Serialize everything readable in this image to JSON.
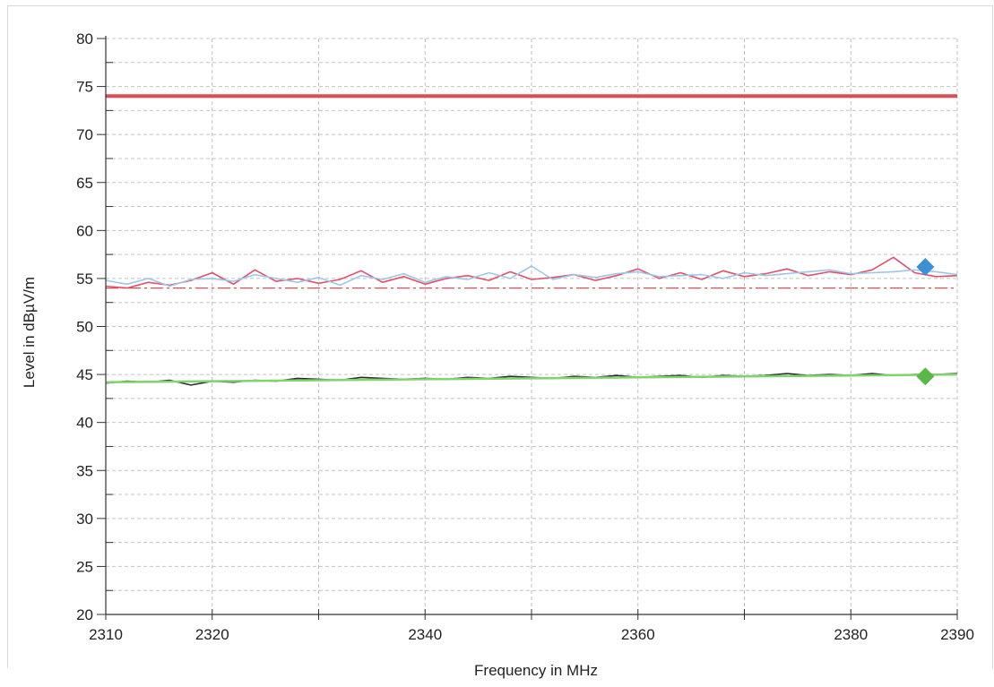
{
  "chart_data": {
    "type": "line",
    "xlabel": "Frequency in MHz",
    "ylabel": "Level in dBµV/m",
    "xlim": [
      2310,
      2390
    ],
    "ylim": [
      20,
      80
    ],
    "x_ticks": [
      2310,
      2320,
      2340,
      2360,
      2380,
      2390
    ],
    "x_ticks_unlabeled": [
      2330,
      2350,
      2370
    ],
    "y_ticks": [
      20,
      25,
      30,
      35,
      40,
      45,
      50,
      55,
      60,
      65,
      70,
      75,
      80
    ],
    "grid": true,
    "limit_lines": [
      {
        "color": "#e04a55",
        "style": "solid",
        "value": 74
      },
      {
        "color": "#e04a55",
        "style": "dash-dot",
        "value": 54
      }
    ],
    "series": [
      {
        "color": "#e0506a",
        "x": [
          2310,
          2312,
          2314,
          2316,
          2318,
          2320,
          2322,
          2324,
          2326,
          2328,
          2330,
          2332,
          2334,
          2336,
          2338,
          2340,
          2342,
          2344,
          2346,
          2348,
          2350,
          2352,
          2354,
          2356,
          2358,
          2360,
          2362,
          2364,
          2366,
          2368,
          2370,
          2372,
          2374,
          2376,
          2378,
          2380,
          2382,
          2384,
          2386,
          2388,
          2390
        ],
        "values": [
          54.2,
          54.0,
          54.6,
          54.3,
          54.8,
          55.6,
          54.4,
          55.9,
          54.7,
          55.0,
          54.5,
          54.9,
          55.8,
          54.6,
          55.2,
          54.4,
          55.0,
          55.3,
          54.8,
          55.7,
          54.9,
          55.1,
          55.4,
          54.8,
          55.3,
          56.0,
          55.0,
          55.6,
          54.9,
          55.8,
          55.2,
          55.5,
          56.0,
          55.3,
          55.7,
          55.4,
          55.9,
          57.2,
          55.6,
          55.2,
          55.3
        ]
      },
      {
        "color": "#9ec5e8",
        "x": [
          2310,
          2312,
          2314,
          2316,
          2318,
          2320,
          2322,
          2324,
          2326,
          2328,
          2330,
          2332,
          2334,
          2336,
          2338,
          2340,
          2342,
          2344,
          2346,
          2348,
          2350,
          2352,
          2354,
          2356,
          2358,
          2360,
          2362,
          2364,
          2366,
          2368,
          2370,
          2372,
          2374,
          2376,
          2378,
          2380,
          2382,
          2384,
          2386,
          2388,
          2390
        ],
        "values": [
          54.8,
          54.4,
          55.0,
          54.2,
          54.9,
          55.0,
          54.7,
          55.4,
          55.0,
          54.6,
          55.1,
          54.3,
          55.3,
          54.9,
          55.5,
          54.6,
          55.2,
          54.9,
          55.6,
          55.0,
          56.3,
          54.9,
          55.4,
          55.1,
          55.5,
          55.7,
          55.2,
          55.3,
          55.4,
          55.0,
          55.6,
          55.3,
          55.5,
          55.7,
          55.9,
          55.5,
          55.6,
          55.7,
          55.9,
          55.7,
          55.4
        ]
      },
      {
        "color": "#2b2b2b",
        "x": [
          2310,
          2312,
          2314,
          2316,
          2318,
          2320,
          2322,
          2324,
          2326,
          2328,
          2330,
          2332,
          2334,
          2336,
          2338,
          2340,
          2342,
          2344,
          2346,
          2348,
          2350,
          2352,
          2354,
          2356,
          2358,
          2360,
          2362,
          2364,
          2366,
          2368,
          2370,
          2372,
          2374,
          2376,
          2378,
          2380,
          2382,
          2384,
          2386,
          2388,
          2390
        ],
        "values": [
          44.1,
          44.3,
          44.2,
          44.4,
          43.9,
          44.3,
          44.2,
          44.4,
          44.3,
          44.6,
          44.5,
          44.4,
          44.7,
          44.6,
          44.5,
          44.6,
          44.5,
          44.7,
          44.6,
          44.8,
          44.7,
          44.6,
          44.8,
          44.7,
          44.9,
          44.7,
          44.8,
          44.9,
          44.7,
          44.9,
          44.8,
          44.9,
          45.1,
          44.9,
          45.0,
          44.9,
          45.1,
          44.9,
          45.0,
          45.0,
          45.1
        ]
      },
      {
        "color": "#7fd46a",
        "x": [
          2310,
          2320,
          2330,
          2340,
          2350,
          2360,
          2370,
          2380,
          2390
        ],
        "values": [
          44.2,
          44.3,
          44.4,
          44.5,
          44.6,
          44.7,
          44.8,
          44.9,
          45.0
        ]
      }
    ],
    "markers": [
      {
        "color": "#3d8fd8",
        "shape": "diamond",
        "x": 2387,
        "y": 56.2
      },
      {
        "color": "#5ab848",
        "shape": "diamond",
        "x": 2387,
        "y": 44.8
      }
    ]
  }
}
